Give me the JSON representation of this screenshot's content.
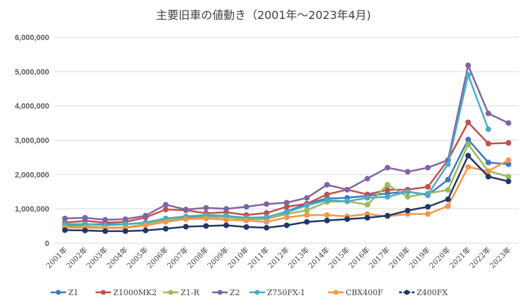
{
  "chart_data": {
    "type": "line",
    "title": "主要旧車の値動き（2001年～2023年4月)",
    "xlabel": "",
    "ylabel": "",
    "ylim": [
      0,
      6000000
    ],
    "yticks": [
      0,
      1000000,
      2000000,
      3000000,
      4000000,
      5000000,
      6000000
    ],
    "ytick_labels": [
      "0",
      "1,000,000",
      "2,000,000",
      "3,000,000",
      "4,000,000",
      "5,000,000",
      "6,000,000"
    ],
    "grid": true,
    "legend_position": "bottom",
    "categories": [
      "2001年",
      "2002年",
      "2003年",
      "2004年",
      "2005年",
      "2006年",
      "2007年",
      "2008年",
      "2009年",
      "2010年",
      "2011年",
      "2012年",
      "2013年",
      "2014年",
      "2015年",
      "2016年",
      "2017年",
      "2018年",
      "2019年",
      "2020年",
      "2021年",
      "2022年",
      "2023年"
    ],
    "series": [
      {
        "name": "Z1",
        "color": "#3F77BF",
        "values": [
          520000,
          550000,
          550000,
          550000,
          600000,
          720000,
          750000,
          800000,
          780000,
          720000,
          750000,
          920000,
          1150000,
          1300000,
          1320000,
          1380000,
          1450000,
          1500000,
          1400000,
          1850000,
          3020000,
          2350000,
          2300000
        ]
      },
      {
        "name": "Z1000MK2",
        "color": "#C0504D",
        "values": [
          600000,
          650000,
          600000,
          620000,
          750000,
          980000,
          960000,
          870000,
          900000,
          820000,
          880000,
          1060000,
          1150000,
          1420000,
          1560000,
          1420000,
          1550000,
          1560000,
          1640000,
          2420000,
          3520000,
          2900000,
          2920000
        ]
      },
      {
        "name": "Z1-R",
        "color": "#9BBB59",
        "values": [
          480000,
          500000,
          450000,
          460000,
          550000,
          680000,
          720000,
          760000,
          750000,
          700000,
          700000,
          850000,
          960000,
          1200000,
          1220000,
          1120000,
          1700000,
          1350000,
          1450000,
          1550000,
          2880000,
          2100000,
          1940000
        ]
      },
      {
        "name": "Z2",
        "color": "#8064A2",
        "values": [
          720000,
          740000,
          680000,
          700000,
          800000,
          1120000,
          980000,
          1030000,
          1000000,
          1060000,
          1140000,
          1180000,
          1320000,
          1700000,
          1560000,
          1880000,
          2200000,
          2080000,
          2200000,
          2420000,
          5180000,
          3780000,
          3500000
        ]
      },
      {
        "name": "Z750FX-1",
        "color": "#4BACC6",
        "values": [
          550000,
          560000,
          520000,
          550000,
          600000,
          720000,
          780000,
          820000,
          800000,
          740000,
          760000,
          900000,
          1100000,
          1250000,
          1220000,
          1320000,
          1350000,
          1500000,
          1420000,
          2300000,
          4900000,
          3320000,
          null
        ]
      },
      {
        "name": "CBX400F",
        "color": "#F79646",
        "values": [
          450000,
          450000,
          440000,
          440000,
          520000,
          620000,
          700000,
          720000,
          680000,
          660000,
          620000,
          750000,
          820000,
          820000,
          780000,
          850000,
          780000,
          850000,
          850000,
          1080000,
          2220000,
          2100000,
          2420000
        ]
      },
      {
        "name": "Z400FX",
        "color": "#1F3864",
        "values": [
          380000,
          370000,
          350000,
          350000,
          370000,
          420000,
          480000,
          500000,
          520000,
          470000,
          450000,
          520000,
          620000,
          660000,
          700000,
          740000,
          800000,
          950000,
          1060000,
          1280000,
          2550000,
          1940000,
          1800000
        ]
      }
    ]
  }
}
